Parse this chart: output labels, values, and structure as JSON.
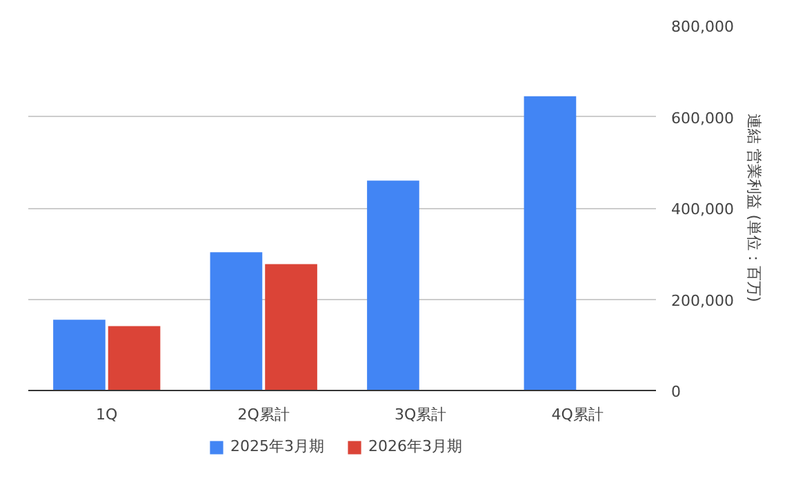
{
  "chart_data": {
    "type": "bar",
    "ylabel": "連結 営業利益 (単位：百万)",
    "categories": [
      "1Q",
      "2Q累計",
      "3Q累計",
      "4Q累計"
    ],
    "series": [
      {
        "name": "2025年3月期",
        "color": "#4285f4",
        "values": [
          155000,
          303000,
          460000,
          645000
        ]
      },
      {
        "name": "2026年3月期",
        "color": "#db4437",
        "values": [
          141000,
          277000,
          null,
          null
        ]
      }
    ],
    "ylim": [
      0,
      800000
    ],
    "yticks": [
      {
        "value": 0,
        "label": "0"
      },
      {
        "value": 200000,
        "label": "200,000"
      },
      {
        "value": 400000,
        "label": "400,000"
      },
      {
        "value": 600000,
        "label": "600,000"
      },
      {
        "value": 800000,
        "label": "800,000"
      }
    ],
    "grid": "y",
    "legend": "bottom"
  }
}
